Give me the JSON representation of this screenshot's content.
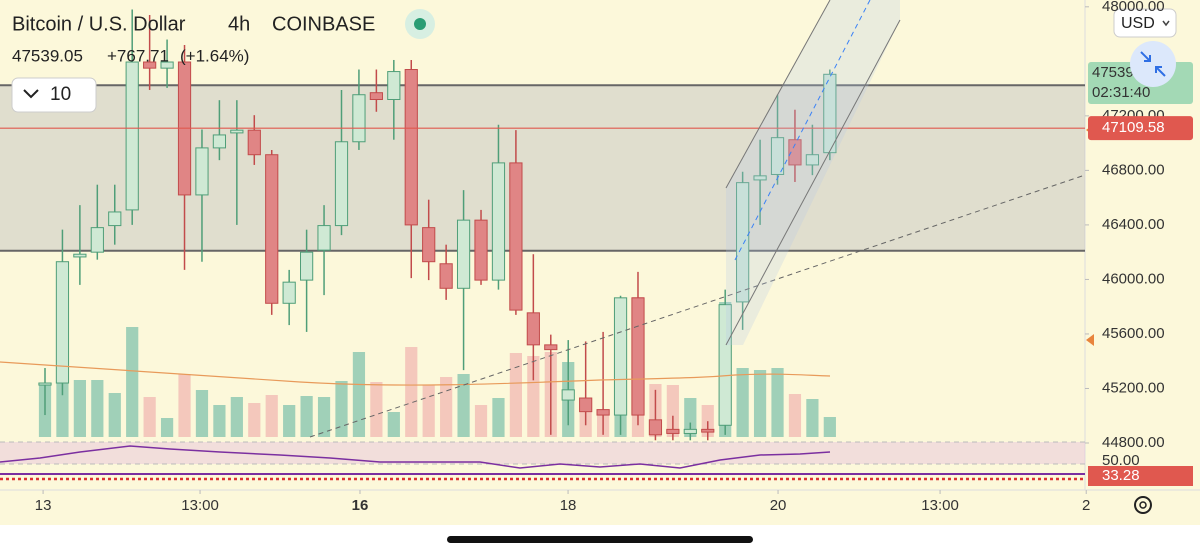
{
  "header": {
    "symbol": "Bitcoin / U.S. Dollar",
    "interval": "4h",
    "exchange": "COINBASE",
    "last_price": "47539.05",
    "change": "+767.71",
    "change_pct": "(+1.64%)",
    "indicator_count": "10",
    "currency": "USD",
    "countdown": "02:31:40"
  },
  "chart_data": {
    "type": "candlestick",
    "x": [
      0,
      1,
      2,
      3,
      4,
      5,
      6,
      7,
      8,
      9,
      10,
      11,
      12,
      13,
      14,
      15,
      16,
      17,
      18,
      19,
      20,
      21,
      22,
      23,
      24,
      25,
      26,
      27,
      28,
      29,
      30,
      31,
      32,
      33,
      34,
      35,
      36,
      37,
      38,
      39,
      40,
      41,
      42,
      43,
      44,
      45
    ],
    "open": [
      45225,
      45240,
      46165,
      46200,
      46395,
      46510,
      47595,
      47550,
      47595,
      46620,
      46965,
      47075,
      47095,
      46915,
      45825,
      45995,
      46215,
      46395,
      47010,
      47370,
      47320,
      47540,
      46380,
      46115,
      45935,
      46435,
      45995,
      46855,
      45755,
      45520,
      45115,
      45130,
      45045,
      45005,
      45865,
      44970,
      44900,
      44870,
      44900,
      44930,
      45835,
      46730,
      46770,
      47025,
      46840,
      46930
    ],
    "high": [
      45350,
      46365,
      46545,
      46695,
      46695,
      47980,
      47940,
      47760,
      47720,
      47100,
      47315,
      47315,
      47205,
      46950,
      46070,
      46365,
      46545,
      47390,
      47540,
      47540,
      47610,
      47610,
      46585,
      46255,
      46655,
      46510,
      47135,
      47095,
      46185,
      45595,
      45555,
      45545,
      45615,
      45880,
      46055,
      45190,
      45000,
      44950,
      44960,
      45925,
      46790,
      47025,
      47355,
      47245,
      47135,
      47540
    ],
    "low": [
      45005,
      45150,
      45960,
      46145,
      46255,
      46400,
      47390,
      47405,
      46070,
      46130,
      46875,
      46400,
      46840,
      45740,
      45665,
      45615,
      45885,
      46325,
      46950,
      47230,
      47025,
      46010,
      45995,
      45850,
      45335,
      45960,
      45925,
      45740,
      45260,
      44860,
      44930,
      44930,
      44860,
      44860,
      44930,
      44820,
      44820,
      44820,
      44820,
      44860,
      45630,
      46400,
      46695,
      46715,
      46765,
      46875
    ],
    "close": [
      45240,
      46130,
      46185,
      46380,
      46495,
      47595,
      47550,
      47595,
      46620,
      46965,
      47060,
      47095,
      46915,
      45825,
      45980,
      46200,
      46395,
      47010,
      47355,
      47320,
      47525,
      46400,
      46130,
      45935,
      46435,
      45995,
      46855,
      45775,
      45520,
      45485,
      45190,
      45030,
      45005,
      45865,
      45005,
      44860,
      44870,
      44900,
      44880,
      45815,
      46710,
      46760,
      47040,
      46840,
      46915,
      47505
    ],
    "volume": [
      54,
      67,
      57,
      57,
      44,
      110,
      40,
      19,
      63,
      47,
      32,
      40,
      34,
      42,
      32,
      41,
      40,
      56,
      85,
      55,
      25,
      90,
      52,
      60,
      63,
      32,
      39,
      84,
      81,
      85,
      75,
      35,
      25,
      139,
      140,
      53,
      52,
      39,
      32,
      135,
      69,
      67,
      69,
      43,
      38,
      20
    ],
    "volume_lim": [
      0,
      150
    ],
    "up_color": "#cfe9d4",
    "down_color": "#e08585",
    "up_volume_color": "#8fc9b1",
    "down_volume_color": "#f2bfb6",
    "xlim": [
      -2.58,
      59.63
    ],
    "xticks": [
      {
        "value": -0.11,
        "label": "13"
      },
      {
        "value": 8.89,
        "label": "13:00"
      },
      {
        "value": 18.06,
        "label": "16"
      },
      {
        "value": 29.99,
        "label": "18"
      },
      {
        "value": 42.03,
        "label": "20"
      },
      {
        "value": 51.32,
        "label": "13:00"
      },
      {
        "value": 59.7,
        "label": "2"
      }
    ],
    "ylim": [
      44800,
      48050
    ],
    "yticks": [
      {
        "value": 44800,
        "label": "44800.00"
      },
      {
        "value": 45200,
        "label": "45200.00"
      },
      {
        "value": 45600,
        "label": "45600.00"
      },
      {
        "value": 46000,
        "label": "46000.00"
      },
      {
        "value": 46400,
        "label": "46400.00"
      },
      {
        "value": 46800,
        "label": "46800.00"
      },
      {
        "value": 47200,
        "label": "47200.00"
      },
      {
        "value": 48000,
        "label": "48000.00"
      }
    ],
    "zone": [
      46210,
      47425
    ],
    "price_line": {
      "value": 47109.58,
      "label": "47109.58",
      "color": "#e0584f"
    },
    "rsi_labels": [
      "50.00",
      "33.28"
    ]
  }
}
